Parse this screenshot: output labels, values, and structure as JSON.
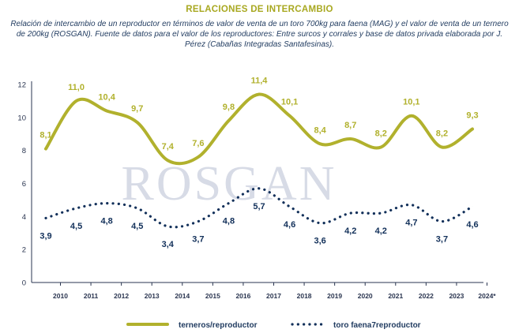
{
  "colors": {
    "title": "#a8a820",
    "text": "#1f3a5f",
    "series1": "#b1b12d",
    "series2": "#12305a",
    "axis": "#2a3550",
    "watermark": "#d7dbe6"
  },
  "chart_data": {
    "type": "line",
    "title": "RELACIONES DE INTERCAMBIO",
    "subtitle": "Relación de intercambio de un reproductor en términos de valor de venta de un toro 700kg para faena (MAG) y el valor de venta de un ternero de 200kg (ROSGAN). Fuente de datos para el valor de los reproductores: Entre surcos y corrales y base de datos privada elaborada por J. Pérez (Cabañas Integradas Santafesinas).",
    "watermark": "ROSGAN",
    "categories": [
      "2010",
      "2011",
      "2012",
      "2013",
      "2014",
      "2015",
      "2016",
      "2017",
      "2018",
      "2019",
      "2020",
      "2021",
      "2022",
      "2023",
      "2024*"
    ],
    "ylim": [
      0,
      12
    ],
    "yticks": [
      "0",
      "2",
      "4",
      "6",
      "8",
      "10",
      "12"
    ],
    "grid": false,
    "legend_position": "bottom",
    "series": [
      {
        "name": "terneros/reproductor",
        "style": "solid",
        "values": [
          8.1,
          11.0,
          10.4,
          9.7,
          7.4,
          7.6,
          9.8,
          11.4,
          10.1,
          8.4,
          8.7,
          8.2,
          10.1,
          8.2,
          9.3
        ],
        "labels": [
          "8,1",
          "11,0",
          "10,4",
          "9,7",
          "7,4",
          "7,6",
          "9,8",
          "11,4",
          "10,1",
          "8,4",
          "8,7",
          "8,2",
          "10,1",
          "8,2",
          "9,3"
        ]
      },
      {
        "name": "toro faena7reproductor",
        "style": "dotted",
        "values": [
          3.9,
          4.5,
          4.8,
          4.5,
          3.4,
          3.7,
          4.8,
          5.7,
          4.6,
          3.6,
          4.2,
          4.2,
          4.7,
          3.7,
          4.6
        ],
        "labels": [
          "3,9",
          "4,5",
          "4,8",
          "4,5",
          "3,4",
          "3,7",
          "4,8",
          "5,7",
          "4,6",
          "3,6",
          "4,2",
          "4,2",
          "4,7",
          "3,7",
          "4,6"
        ]
      }
    ]
  }
}
